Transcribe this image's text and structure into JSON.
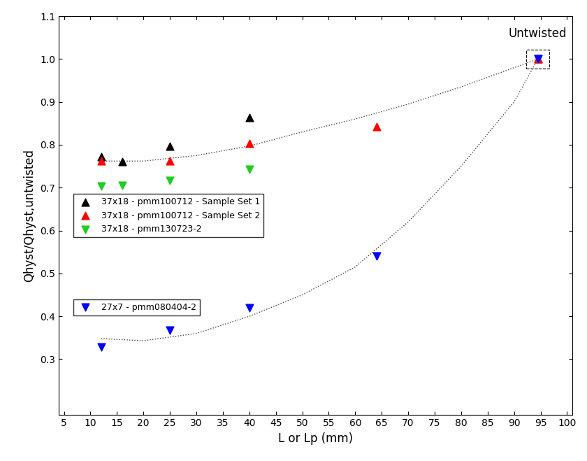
{
  "chart_data": {
    "type": "scatter",
    "x_label": "L or Lp (mm)",
    "y_label": "Qhyst/Qhyst,untwisted",
    "annotation": "Untwisted",
    "xlim": [
      4,
      101
    ],
    "ylim": [
      0.17,
      1.1
    ],
    "xticks": [
      5,
      10,
      15,
      20,
      25,
      30,
      35,
      40,
      45,
      50,
      55,
      60,
      65,
      70,
      75,
      80,
      85,
      90,
      95,
      100
    ],
    "yticks": [
      0.3,
      0.4,
      0.5,
      0.6,
      0.7,
      0.8,
      0.9,
      1.0,
      1.1
    ],
    "grid": false,
    "legend": "center left",
    "series": [
      {
        "name": "37x18 - pmm100712 - Sample Set 1",
        "color": "#000000",
        "marker": "triangle_up",
        "x": [
          12,
          16,
          25,
          40,
          94.5
        ],
        "values": [
          0.772,
          0.76,
          0.797,
          0.863,
          1.0
        ]
      },
      {
        "name": "37x18 - pmm100712 - Sample Set 2",
        "color": "#ff0000",
        "marker": "triangle_up",
        "x": [
          12,
          25,
          40,
          64,
          94.5
        ],
        "values": [
          0.762,
          0.762,
          0.803,
          0.842,
          1.0
        ]
      },
      {
        "name": "37x18 - pmm130723-2",
        "color": "#22cc22",
        "marker": "triangle_down",
        "x": [
          12,
          16,
          25,
          40,
          94.5
        ],
        "values": [
          0.703,
          0.705,
          0.717,
          0.743,
          1.0
        ]
      },
      {
        "name": "27x7 - pmm080404-2",
        "color": "#0000ff",
        "marker": "triangle_down",
        "x": [
          12,
          25,
          40,
          64,
          94.5
        ],
        "values": [
          0.328,
          0.367,
          0.42,
          0.541,
          1.0
        ]
      }
    ],
    "trend_lines": [
      {
        "color": "#444444",
        "line_style": "dotted",
        "x": [
          12,
          20,
          30,
          40,
          50,
          60,
          70,
          80,
          94.5
        ],
        "values": [
          0.762,
          0.762,
          0.775,
          0.797,
          0.83,
          0.86,
          0.895,
          0.935,
          1.0
        ]
      },
      {
        "color": "#444444",
        "line_style": "dotted",
        "x": [
          12,
          20,
          30,
          40,
          50,
          60,
          70,
          80,
          90,
          94.5
        ],
        "values": [
          0.348,
          0.343,
          0.36,
          0.4,
          0.45,
          0.515,
          0.62,
          0.75,
          0.9,
          1.0
        ]
      }
    ]
  }
}
